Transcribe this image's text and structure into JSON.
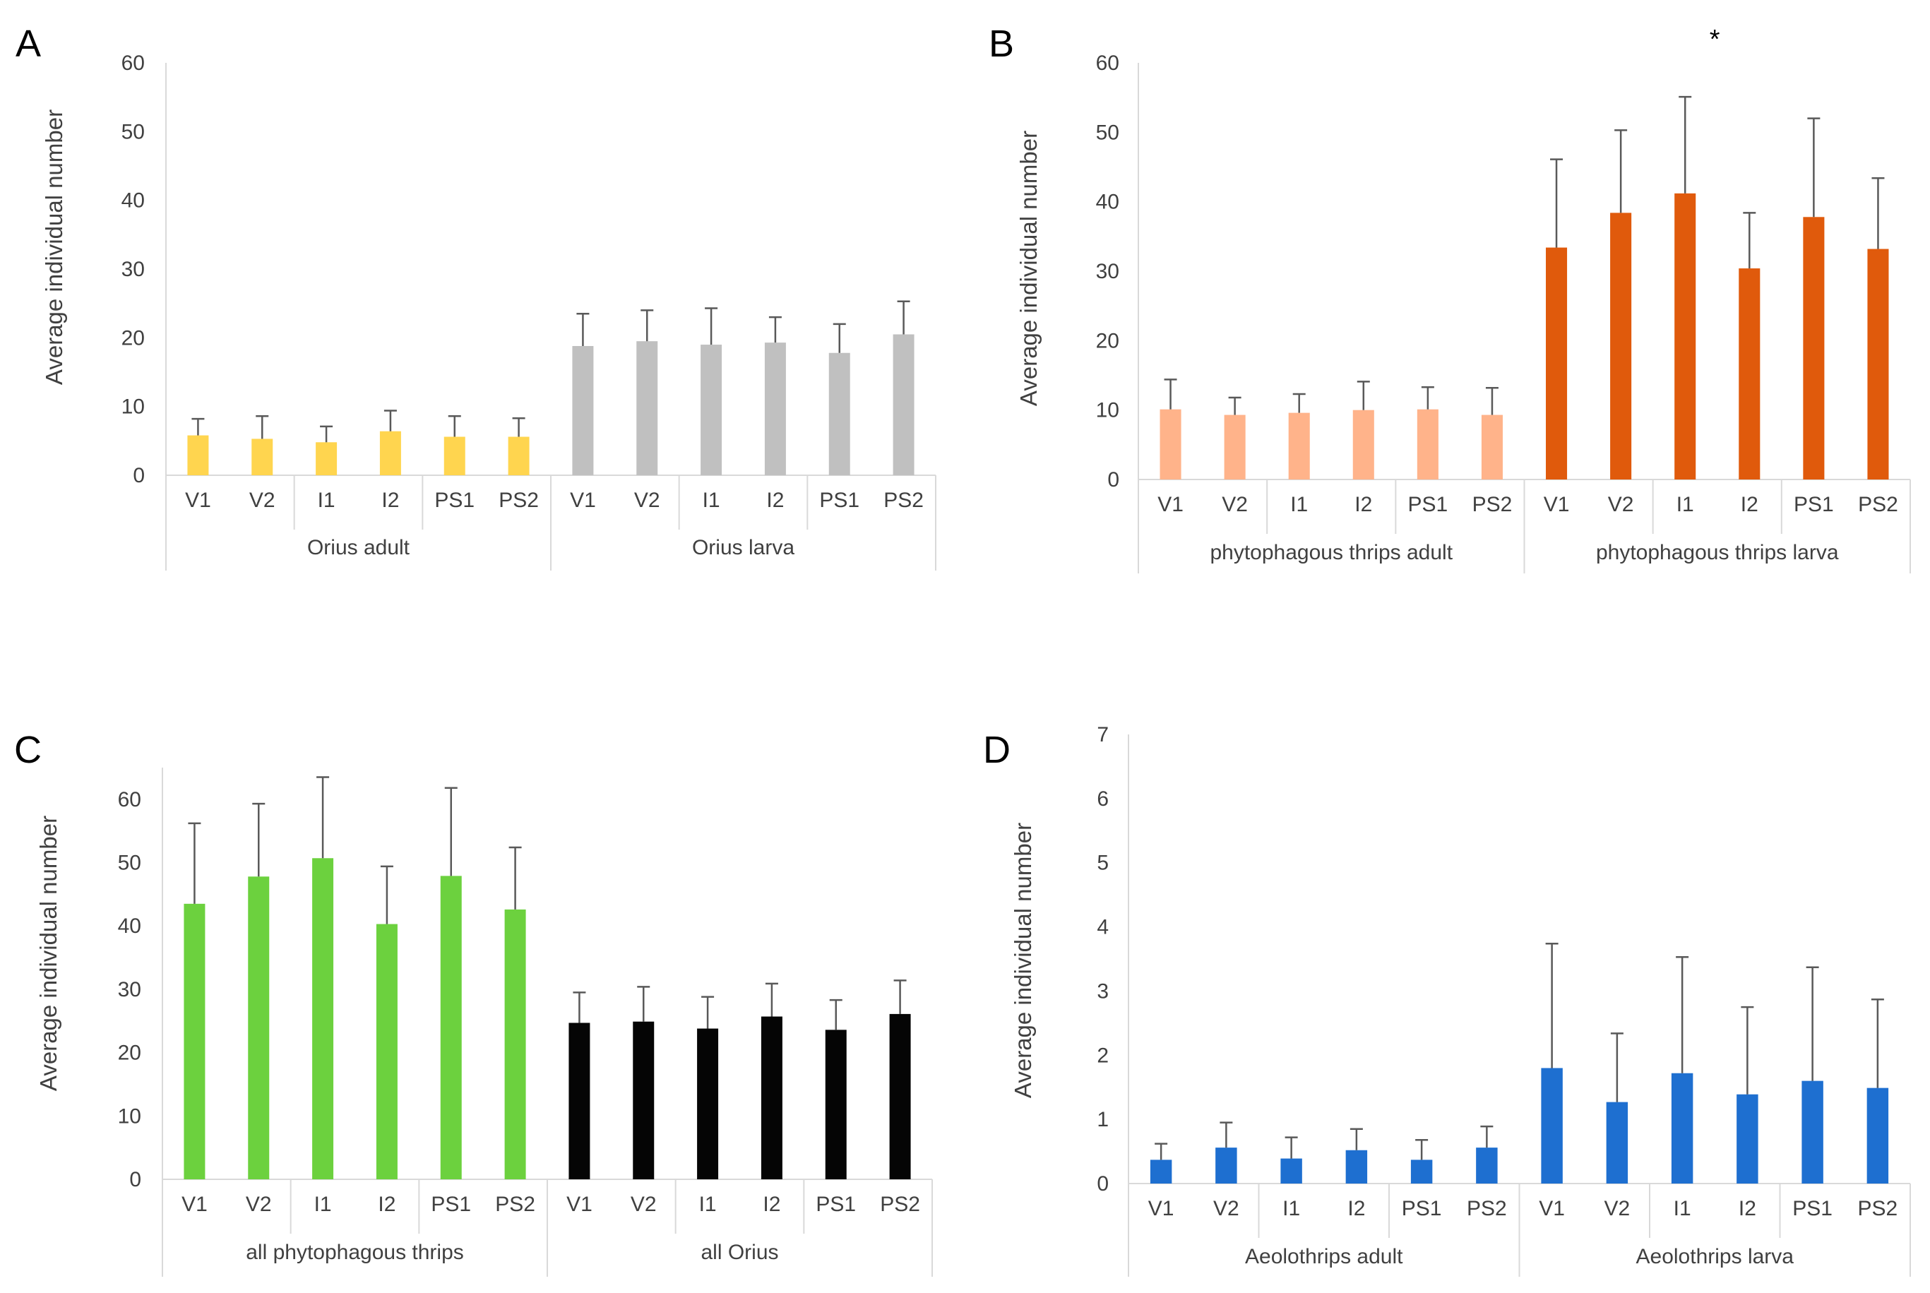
{
  "chart_data": [
    {
      "panel": "A",
      "type": "bar",
      "ylabel": "Average individual number",
      "ylim": [
        0,
        60
      ],
      "yticks": [
        "0",
        "10",
        "20",
        "30",
        "40",
        "50",
        "60"
      ],
      "groups": [
        {
          "name": "Orius adult",
          "color": "#FFD54F",
          "categories": [
            "V1",
            "V2",
            "I1",
            "I2",
            "PS1",
            "PS2"
          ],
          "values": [
            5.8,
            5.3,
            4.8,
            6.4,
            5.6,
            5.6
          ],
          "errors": [
            2.4,
            3.3,
            2.3,
            3.0,
            3.0,
            2.7
          ]
        },
        {
          "name": "Orius larva",
          "color": "#C0C0C0",
          "categories": [
            "V1",
            "V2",
            "I1",
            "I2",
            "PS1",
            "PS2"
          ],
          "values": [
            18.8,
            19.5,
            19.0,
            19.3,
            17.8,
            20.5
          ],
          "errors": [
            4.7,
            4.5,
            5.3,
            3.7,
            4.2,
            4.8
          ]
        }
      ],
      "annotations": []
    },
    {
      "panel": "B",
      "type": "bar",
      "ylabel": "Average individual number",
      "ylim": [
        0,
        60
      ],
      "yticks": [
        "0",
        "10",
        "20",
        "30",
        "40",
        "50",
        "60"
      ],
      "groups": [
        {
          "name": "phytophagous thrips adult",
          "color": "#FFB38A",
          "categories": [
            "V1",
            "V2",
            "I1",
            "I2",
            "PS1",
            "PS2"
          ],
          "values": [
            10.1,
            9.3,
            9.6,
            10.0,
            10.1,
            9.3
          ],
          "errors": [
            4.3,
            2.5,
            2.7,
            4.1,
            3.2,
            3.9
          ]
        },
        {
          "name": "phytophagous thrips larva",
          "color": "#E05A0C",
          "categories": [
            "V1",
            "V2",
            "I1",
            "I2",
            "PS1",
            "PS2"
          ],
          "values": [
            33.4,
            38.4,
            41.2,
            30.4,
            37.8,
            33.2
          ],
          "errors": [
            12.7,
            11.9,
            13.9,
            8.0,
            14.2,
            10.2
          ]
        }
      ],
      "annotations": [
        {
          "text": "*",
          "target": "phytophagous thrips larva I1"
        }
      ]
    },
    {
      "panel": "C",
      "type": "bar",
      "ylabel": "Average individual number",
      "ylim": [
        0,
        65
      ],
      "yticks": [
        "0",
        "10",
        "20",
        "30",
        "40",
        "50",
        "60"
      ],
      "groups": [
        {
          "name": "all phytophagous thrips",
          "color": "#6CD13E",
          "categories": [
            "V1",
            "V2",
            "I1",
            "I2",
            "PS1",
            "PS2"
          ],
          "values": [
            43.5,
            47.8,
            50.7,
            40.3,
            47.9,
            42.6
          ],
          "errors": [
            12.7,
            11.5,
            12.8,
            9.1,
            13.9,
            9.8
          ]
        },
        {
          "name": "all Orius",
          "color": "#050505",
          "categories": [
            "V1",
            "V2",
            "I1",
            "I2",
            "PS1",
            "PS2"
          ],
          "values": [
            24.7,
            24.9,
            23.8,
            25.7,
            23.6,
            26.1
          ],
          "errors": [
            4.8,
            5.5,
            5.0,
            5.2,
            4.7,
            5.3
          ]
        }
      ],
      "annotations": []
    },
    {
      "panel": "D",
      "type": "bar",
      "ylabel": "Average individual number",
      "ylim": [
        0,
        7
      ],
      "yticks": [
        "0",
        "1",
        "2",
        "3",
        "4",
        "5",
        "6",
        "7"
      ],
      "groups": [
        {
          "name": "Aeolothrips adult",
          "color": "#1E6FD0",
          "categories": [
            "V1",
            "V2",
            "I1",
            "I2",
            "PS1",
            "PS2"
          ],
          "values": [
            0.37,
            0.56,
            0.39,
            0.52,
            0.37,
            0.56
          ],
          "errors": [
            0.25,
            0.39,
            0.33,
            0.33,
            0.31,
            0.33
          ]
        },
        {
          "name": "Aeolothrips larva",
          "color": "#1E6FD0",
          "categories": [
            "V1",
            "V2",
            "I1",
            "I2",
            "PS1",
            "PS2"
          ],
          "values": [
            1.8,
            1.27,
            1.72,
            1.39,
            1.6,
            1.49
          ],
          "errors": [
            1.94,
            1.07,
            1.81,
            1.36,
            1.77,
            1.38
          ]
        }
      ],
      "annotations": []
    }
  ]
}
